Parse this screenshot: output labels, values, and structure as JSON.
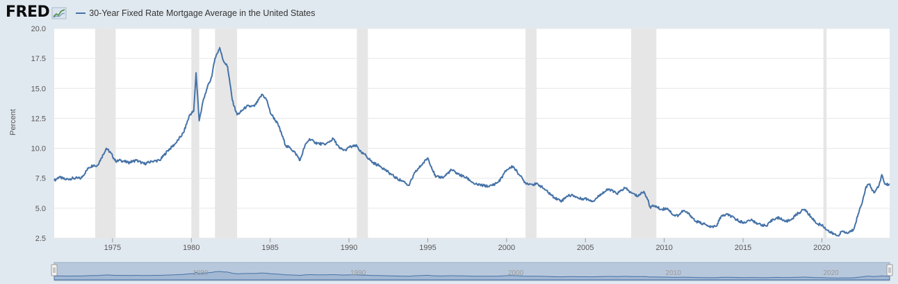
{
  "header": {
    "logo": "FRED",
    "logo_icon": "chart-trend-icon",
    "legend_label": "30-Year Fixed Rate Mortgage Average in the United States"
  },
  "colors": {
    "page_bg": "#e1e9f0",
    "plot_bg": "#ffffff",
    "series": "#4572a7",
    "recession": "#e6e6e6",
    "grid": "#e6e6e6",
    "navigator_bg": "#b8c8dc",
    "navigator_fill": "#a3b8d3"
  },
  "chart_data": {
    "type": "line",
    "title": "",
    "xlabel": "",
    "ylabel": "Percent",
    "xlim": [
      1971.3,
      2024.3
    ],
    "ylim": [
      2.5,
      20.0
    ],
    "yticks": [
      "2.5",
      "5.0",
      "7.5",
      "10.0",
      "12.5",
      "15.0",
      "17.5",
      "20.0"
    ],
    "xticks": [
      "1975",
      "1980",
      "1985",
      "1990",
      "1995",
      "2000",
      "2005",
      "2010",
      "2015",
      "2020"
    ],
    "grid": true,
    "legend": "top-left",
    "recessions": [
      [
        1973.9,
        1975.2
      ],
      [
        1980.0,
        1980.5
      ],
      [
        1981.5,
        1982.9
      ],
      [
        1990.5,
        1991.2
      ],
      [
        2001.2,
        2001.9
      ],
      [
        2007.9,
        2009.5
      ],
      [
        2020.1,
        2020.3
      ]
    ],
    "series": [
      {
        "name": "30-Year Fixed Rate Mortgage Average in the United States",
        "x": [
          1971.3,
          1971.6,
          1972.0,
          1972.5,
          1973.0,
          1973.5,
          1973.8,
          1974.0,
          1974.3,
          1974.6,
          1974.9,
          1975.2,
          1975.5,
          1976.0,
          1976.5,
          1977.0,
          1977.5,
          1978.0,
          1978.5,
          1979.0,
          1979.5,
          1979.9,
          1980.15,
          1980.3,
          1980.5,
          1980.7,
          1981.0,
          1981.3,
          1981.5,
          1981.8,
          1982.0,
          1982.3,
          1982.6,
          1982.9,
          1983.1,
          1983.5,
          1984.0,
          1984.5,
          1984.8,
          1985.0,
          1985.5,
          1986.0,
          1986.3,
          1986.6,
          1986.9,
          1987.2,
          1987.5,
          1987.8,
          1988.1,
          1988.5,
          1989.0,
          1989.4,
          1989.8,
          1990.0,
          1990.5,
          1990.8,
          1991.0,
          1991.5,
          1992.0,
          1992.5,
          1993.0,
          1993.5,
          1993.8,
          1994.2,
          1994.6,
          1995.0,
          1995.5,
          1996.0,
          1996.5,
          1997.0,
          1997.5,
          1998.0,
          1998.5,
          1998.9,
          1999.5,
          2000.0,
          2000.4,
          2000.8,
          2001.2,
          2001.6,
          2002.0,
          2002.5,
          2003.0,
          2003.5,
          2003.8,
          2004.2,
          2004.6,
          2005.0,
          2005.5,
          2006.0,
          2006.5,
          2007.0,
          2007.5,
          2007.9,
          2008.3,
          2008.7,
          2008.9,
          2009.1,
          2009.4,
          2009.8,
          2010.2,
          2010.6,
          2010.9,
          2011.2,
          2011.6,
          2012.0,
          2012.5,
          2012.9,
          2013.3,
          2013.6,
          2014.0,
          2014.5,
          2015.0,
          2015.5,
          2016.0,
          2016.5,
          2016.9,
          2017.3,
          2017.7,
          2018.0,
          2018.5,
          2018.9,
          2019.3,
          2019.7,
          2020.0,
          2020.5,
          2021.0,
          2021.3,
          2021.6,
          2022.0,
          2022.3,
          2022.6,
          2022.8,
          2023.0,
          2023.3,
          2023.6,
          2023.8,
          2024.0,
          2024.3
        ],
        "values": [
          7.3,
          7.6,
          7.4,
          7.5,
          7.5,
          8.4,
          8.6,
          8.5,
          9.2,
          10.0,
          9.6,
          8.9,
          9.0,
          8.8,
          9.0,
          8.7,
          8.9,
          9.0,
          9.8,
          10.4,
          11.3,
          12.8,
          13.1,
          16.3,
          12.3,
          13.7,
          15.0,
          16.0,
          17.5,
          18.4,
          17.4,
          16.8,
          14.0,
          12.8,
          13.0,
          13.5,
          13.5,
          14.5,
          14.0,
          13.0,
          12.0,
          10.2,
          10.0,
          9.6,
          9.0,
          10.2,
          10.8,
          10.5,
          10.4,
          10.3,
          10.8,
          10.0,
          9.8,
          10.1,
          10.2,
          9.6,
          9.5,
          8.8,
          8.5,
          8.0,
          7.5,
          7.2,
          6.9,
          8.0,
          8.6,
          9.2,
          7.6,
          7.6,
          8.2,
          7.8,
          7.5,
          7.0,
          6.9,
          6.8,
          7.2,
          8.2,
          8.5,
          7.8,
          7.1,
          7.0,
          7.0,
          6.5,
          5.9,
          5.6,
          6.0,
          6.1,
          5.8,
          5.8,
          5.6,
          6.2,
          6.6,
          6.2,
          6.7,
          6.3,
          6.0,
          6.4,
          5.9,
          5.1,
          5.2,
          4.9,
          5.0,
          4.4,
          4.4,
          4.8,
          4.5,
          3.9,
          3.7,
          3.4,
          3.5,
          4.3,
          4.5,
          4.1,
          3.8,
          4.0,
          3.7,
          3.5,
          4.1,
          4.2,
          3.9,
          4.0,
          4.6,
          4.9,
          4.3,
          3.7,
          3.6,
          3.0,
          2.7,
          3.1,
          2.9,
          3.2,
          4.5,
          5.7,
          6.8,
          7.0,
          6.3,
          6.8,
          7.8,
          7.0,
          7.0
        ]
      }
    ]
  }
}
